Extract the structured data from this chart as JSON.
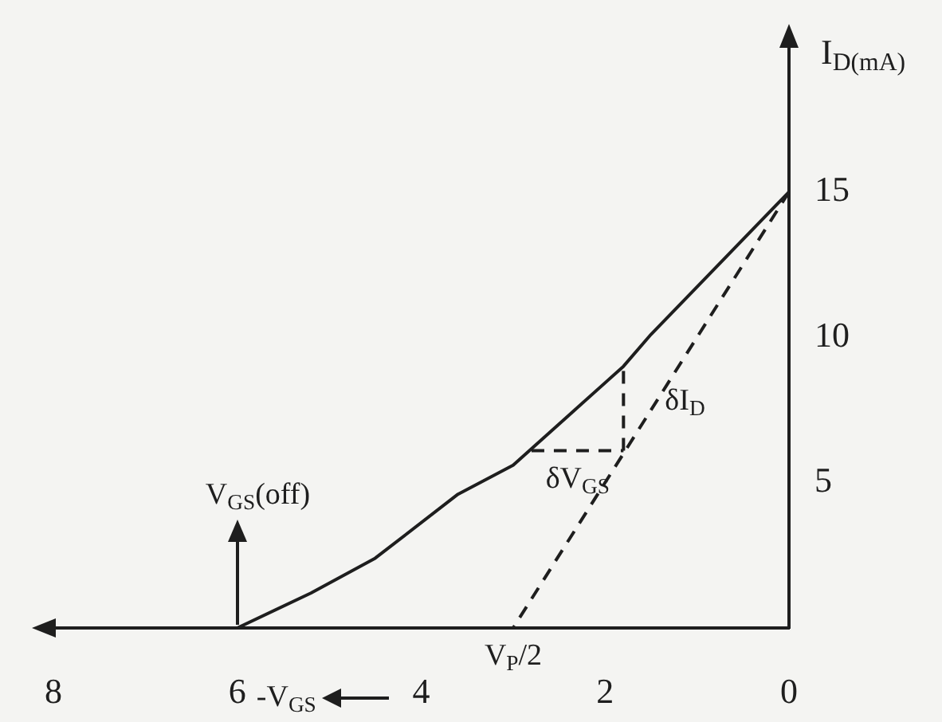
{
  "chart_data": {
    "type": "line",
    "xlabel": "-V$_{GS}$",
    "ylabel": "I$_{D(mA)}$",
    "xlim": [
      8,
      0
    ],
    "ylim": [
      0,
      20
    ],
    "xticks": [
      8,
      6,
      4,
      2,
      0
    ],
    "yticks": [
      5,
      10,
      15
    ],
    "marker": "none",
    "series": [
      {
        "color": "#1e1e1e",
        "line_style": "solid",
        "x": [
          6,
          5.2,
          4.5,
          3.6,
          3.0,
          2.4,
          1.8,
          1.5,
          0
        ],
        "values": [
          0,
          1.2,
          2.4,
          4.6,
          5.6,
          7.3,
          9.0,
          10.1,
          15
        ]
      },
      {
        "color": "#1e1e1e",
        "line_style": "dashed",
        "x": [
          0,
          3
        ],
        "values": [
          15,
          0
        ]
      },
      {
        "color": "#1e1e1e",
        "line_style": "dashed",
        "x": [
          2.8,
          1.8
        ],
        "values": [
          6.1,
          6.1
        ]
      },
      {
        "color": "#1e1e1e",
        "line_style": "dashed",
        "x": [
          1.8,
          1.8
        ],
        "values": [
          6.1,
          9.0
        ]
      }
    ],
    "annotations": [
      {
        "text": "V$_{GS}$(off)",
        "x": 6,
        "y": 0
      },
      {
        "text": "δI$_{D}$",
        "x": 1.8,
        "y": 7.8
      },
      {
        "text": "δV$_{GS}$",
        "x": 2.3,
        "y": 6.1
      },
      {
        "text": "V$_{P}$/2",
        "x": 3,
        "y": 0
      }
    ]
  }
}
